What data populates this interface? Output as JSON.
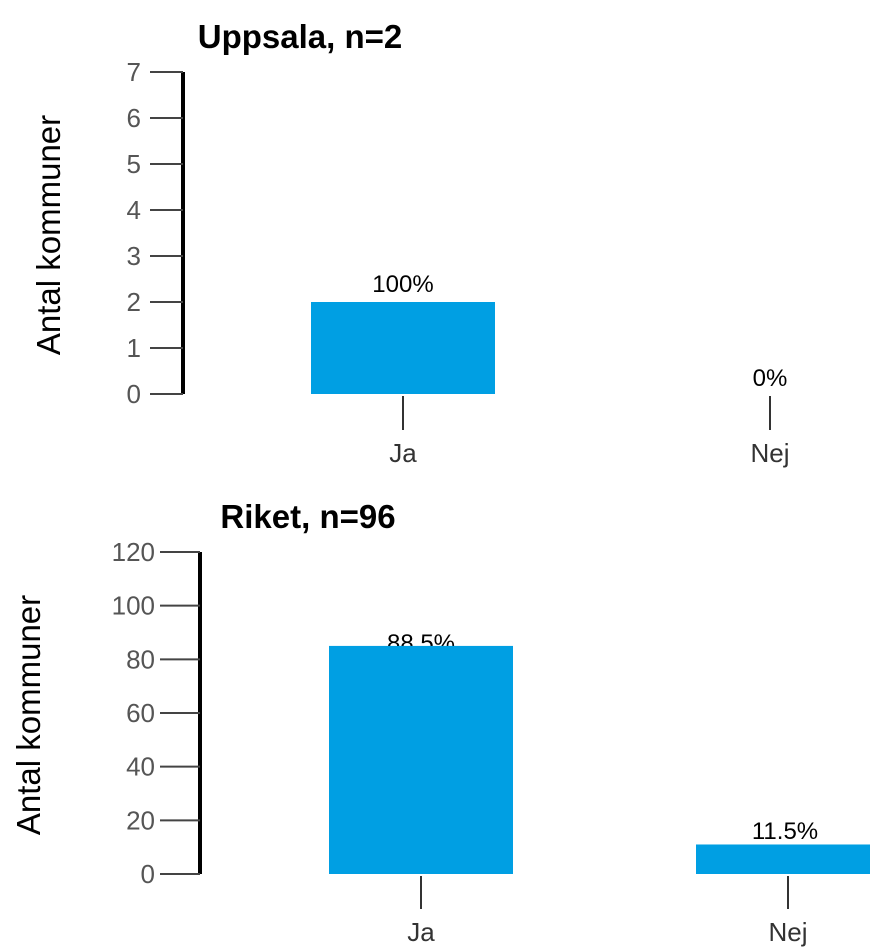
{
  "chart_data": [
    {
      "type": "bar",
      "title": "Uppsala, n=2",
      "ylabel": "Antal kommuner",
      "xlabel": "",
      "categories": [
        "Ja",
        "Nej"
      ],
      "values": [
        2,
        0
      ],
      "data_labels": [
        "100%",
        "0%"
      ],
      "ylim": [
        0,
        7
      ],
      "yticks": [
        0,
        1,
        2,
        3,
        4,
        5,
        6,
        7
      ],
      "bar_color": "#009FE3",
      "grid": false
    },
    {
      "type": "bar",
      "title": "Riket, n=96",
      "ylabel": "Antal kommuner",
      "xlabel": "",
      "categories": [
        "Ja",
        "Nej"
      ],
      "values": [
        85,
        11
      ],
      "data_labels": [
        "88.5%",
        "11.5%"
      ],
      "ylim": [
        0,
        120
      ],
      "yticks": [
        0,
        20,
        40,
        60,
        80,
        100,
        120
      ],
      "bar_color": "#009FE3",
      "grid": false
    }
  ]
}
